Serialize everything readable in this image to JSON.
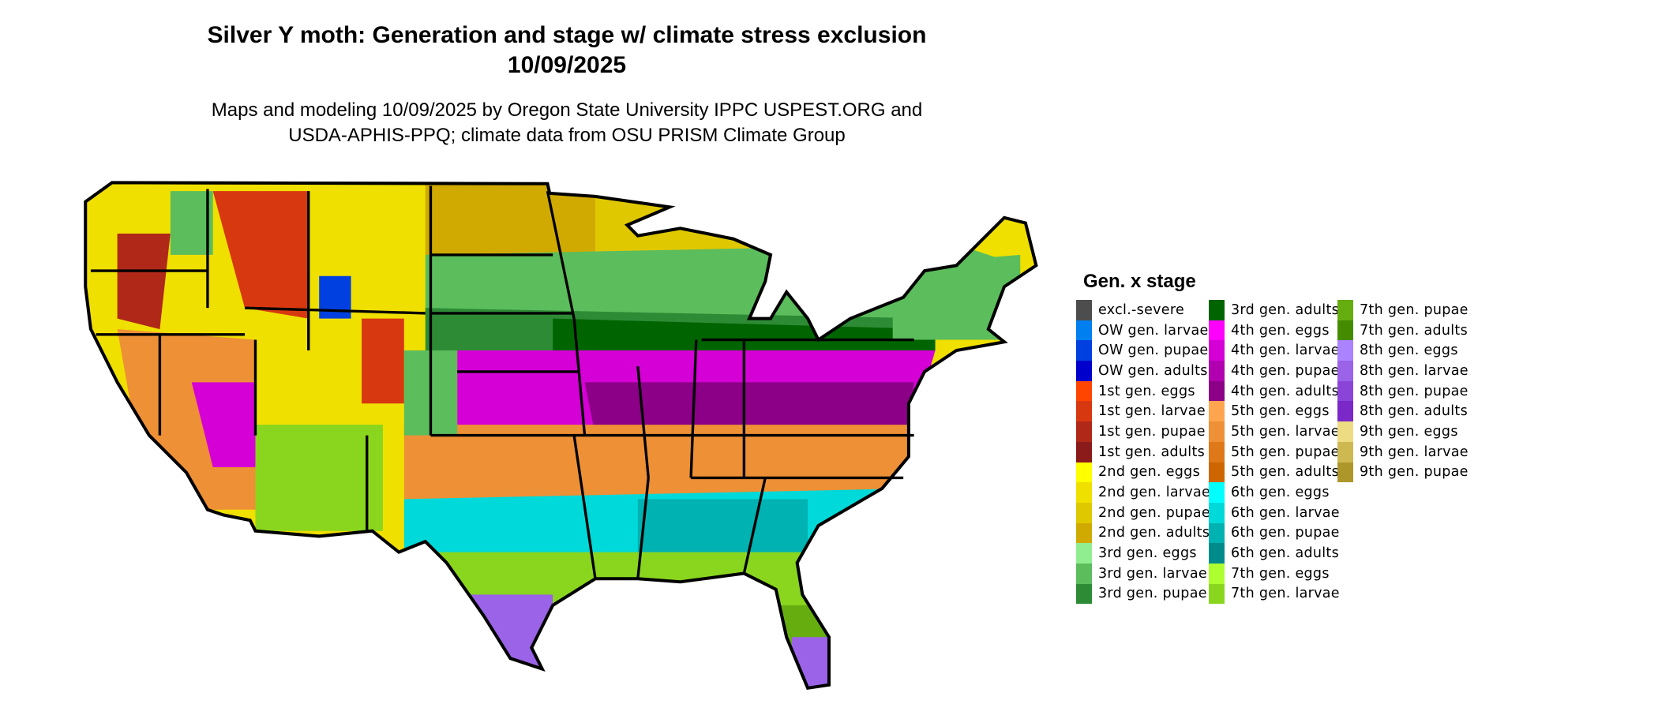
{
  "title": {
    "line1": "Silver Y moth: Generation and stage w/ climate stress exclusion",
    "line2": "10/09/2025"
  },
  "subtitle": {
    "line1": "Maps and modeling 10/09/2025 by Oregon State University IPPC USPEST.ORG and",
    "line2": "USDA-APHIS-PPQ; climate data from OSU PRISM Climate Group"
  },
  "legend": {
    "title": "Gen. x stage",
    "items": [
      {
        "label": "excl.-severe",
        "color": "#4d4d4d"
      },
      {
        "label": "OW gen. larvae",
        "color": "#0080f0"
      },
      {
        "label": "OW gen. pupae",
        "color": "#0040e0"
      },
      {
        "label": "OW gen. adults",
        "color": "#0000cc"
      },
      {
        "label": "1st gen. eggs",
        "color": "#ff4500"
      },
      {
        "label": "1st gen. larvae",
        "color": "#d83810"
      },
      {
        "label": "1st gen. pupae",
        "color": "#b02818"
      },
      {
        "label": "1st gen. adults",
        "color": "#8b1a1a"
      },
      {
        "label": "2nd gen. eggs",
        "color": "#ffff00"
      },
      {
        "label": "2nd gen. larvae",
        "color": "#f0e000"
      },
      {
        "label": "2nd gen. pupae",
        "color": "#e0c800"
      },
      {
        "label": "2nd gen. adults",
        "color": "#d0aa00"
      },
      {
        "label": "3rd gen. eggs",
        "color": "#90ee90"
      },
      {
        "label": "3rd gen. larvae",
        "color": "#5cbd5c"
      },
      {
        "label": "3rd gen. pupae",
        "color": "#2e8b35"
      },
      {
        "label": "3rd gen. adults",
        "color": "#006400"
      },
      {
        "label": "4th gen. eggs",
        "color": "#ff00ff"
      },
      {
        "label": "4th gen. larvae",
        "color": "#d500d5"
      },
      {
        "label": "4th gen. pupae",
        "color": "#b000b0"
      },
      {
        "label": "4th gen. adults",
        "color": "#8b0086"
      },
      {
        "label": "5th gen. eggs",
        "color": "#ffa54f"
      },
      {
        "label": "5th gen. larvae",
        "color": "#ee9035"
      },
      {
        "label": "5th gen. pupae",
        "color": "#de7818"
      },
      {
        "label": "5th gen. adults",
        "color": "#cd6600"
      },
      {
        "label": "6th gen. eggs",
        "color": "#00ffff"
      },
      {
        "label": "6th gen. larvae",
        "color": "#00d9d9"
      },
      {
        "label": "6th gen. pupae",
        "color": "#00b2b2"
      },
      {
        "label": "6th gen. adults",
        "color": "#008b8b"
      },
      {
        "label": "7th gen. eggs",
        "color": "#adff2f"
      },
      {
        "label": "7th gen. larvae",
        "color": "#8ad61e"
      },
      {
        "label": "7th gen. pupae",
        "color": "#66ad10"
      },
      {
        "label": "7th gen. adults",
        "color": "#458b00"
      },
      {
        "label": "8th gen. eggs",
        "color": "#ab82ff"
      },
      {
        "label": "8th gen. larvae",
        "color": "#9b63e8"
      },
      {
        "label": "8th gen. pupae",
        "color": "#8a45d8"
      },
      {
        "label": "8th gen. adults",
        "color": "#7a28c8"
      },
      {
        "label": "9th gen. eggs",
        "color": "#eedc82"
      },
      {
        "label": "9th gen. larvae",
        "color": "#cdb852"
      },
      {
        "label": "9th gen. pupae",
        "color": "#ad962a"
      }
    ]
  }
}
